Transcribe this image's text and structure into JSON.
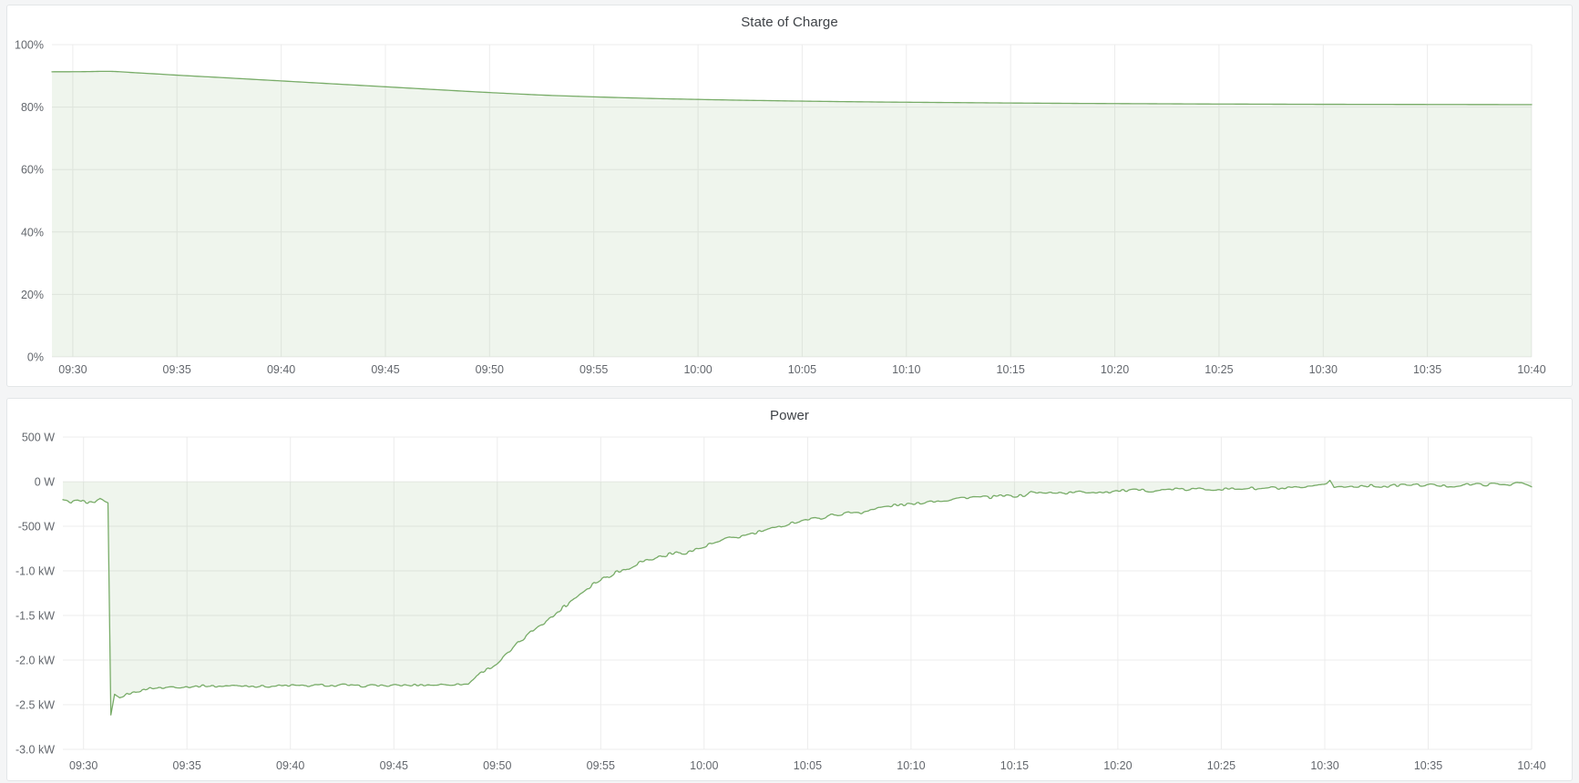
{
  "theme": {
    "page_background": "#f4f5f6",
    "panel_background": "#ffffff",
    "panel_border": "#e3e6e8",
    "title_color": "#3e4247",
    "axis_text_color": "#63676d",
    "grid_color": "#ececec",
    "line_color": "#78ac68",
    "fill_color": "rgba(120,172,104,0.12)"
  },
  "chart_data": [
    {
      "type": "area",
      "title": "State of Charge",
      "unit": "percent",
      "legend": "none",
      "grid": true,
      "smooth": true,
      "noise": false,
      "baseline": 0,
      "ylim": [
        0,
        100
      ],
      "y_ticks": [
        {
          "v": 100,
          "label": "100%"
        },
        {
          "v": 80,
          "label": "80%"
        },
        {
          "v": 60,
          "label": "60%"
        },
        {
          "v": 40,
          "label": "40%"
        },
        {
          "v": 20,
          "label": "20%"
        },
        {
          "v": 0,
          "label": "0%"
        }
      ],
      "x_range_minutes": [
        -1,
        70
      ],
      "x_ticks": [
        {
          "t": 0,
          "label": "09:30"
        },
        {
          "t": 5,
          "label": "09:35"
        },
        {
          "t": 10,
          "label": "09:40"
        },
        {
          "t": 15,
          "label": "09:45"
        },
        {
          "t": 20,
          "label": "09:50"
        },
        {
          "t": 25,
          "label": "09:55"
        },
        {
          "t": 30,
          "label": "10:00"
        },
        {
          "t": 35,
          "label": "10:05"
        },
        {
          "t": 40,
          "label": "10:10"
        },
        {
          "t": 45,
          "label": "10:15"
        },
        {
          "t": 50,
          "label": "10:20"
        },
        {
          "t": 55,
          "label": "10:25"
        },
        {
          "t": 60,
          "label": "10:30"
        },
        {
          "t": 65,
          "label": "10:35"
        },
        {
          "t": 70,
          "label": "10:40"
        }
      ],
      "points": [
        [
          -1,
          91.3
        ],
        [
          0,
          91.32
        ],
        [
          0.7,
          91.36
        ],
        [
          1.4,
          91.44
        ],
        [
          1.9,
          91.42
        ],
        [
          2.4,
          91.25
        ],
        [
          3,
          91.0
        ],
        [
          4,
          90.62
        ],
        [
          5,
          90.22
        ],
        [
          6,
          89.85
        ],
        [
          7,
          89.5
        ],
        [
          8,
          89.12
        ],
        [
          9,
          88.75
        ],
        [
          10,
          88.38
        ],
        [
          11,
          88.0
        ],
        [
          12,
          87.62
        ],
        [
          13,
          87.25
        ],
        [
          14,
          86.88
        ],
        [
          15,
          86.5
        ],
        [
          16,
          86.12
        ],
        [
          17,
          85.75
        ],
        [
          18,
          85.38
        ],
        [
          19,
          85.0
        ],
        [
          20,
          84.65
        ],
        [
          21,
          84.32
        ],
        [
          22,
          84.0
        ],
        [
          23,
          83.72
        ],
        [
          24,
          83.5
        ],
        [
          25,
          83.28
        ],
        [
          26,
          83.08
        ],
        [
          27,
          82.9
        ],
        [
          28,
          82.72
        ],
        [
          29,
          82.58
        ],
        [
          30,
          82.45
        ],
        [
          31,
          82.32
        ],
        [
          32,
          82.2
        ],
        [
          33,
          82.1
        ],
        [
          34,
          82.0
        ],
        [
          35,
          81.9
        ],
        [
          36,
          81.82
        ],
        [
          37,
          81.74
        ],
        [
          38,
          81.67
        ],
        [
          39,
          81.6
        ],
        [
          40,
          81.55
        ],
        [
          41,
          81.5
        ],
        [
          42,
          81.45
        ],
        [
          43,
          81.4
        ],
        [
          44,
          81.35
        ],
        [
          45,
          81.3
        ],
        [
          46,
          81.26
        ],
        [
          47,
          81.22
        ],
        [
          48,
          81.18
        ],
        [
          49,
          81.15
        ],
        [
          50,
          81.12
        ],
        [
          51,
          81.09
        ],
        [
          52,
          81.06
        ],
        [
          53,
          81.03
        ],
        [
          54,
          81.0
        ],
        [
          55,
          80.98
        ],
        [
          56,
          80.96
        ],
        [
          57,
          80.94
        ],
        [
          58,
          80.92
        ],
        [
          59,
          80.9
        ],
        [
          60,
          80.89
        ],
        [
          61,
          80.88
        ],
        [
          62,
          80.87
        ],
        [
          63,
          80.86
        ],
        [
          64,
          80.85
        ],
        [
          65,
          80.84
        ],
        [
          66,
          80.83
        ],
        [
          67,
          80.82
        ],
        [
          68,
          80.81
        ],
        [
          69,
          80.8
        ],
        [
          70,
          80.79
        ]
      ]
    },
    {
      "type": "area",
      "title": "Power",
      "unit": "watt",
      "legend": "none",
      "grid": true,
      "smooth": false,
      "noise": true,
      "sample_step": 0.08,
      "baseline": 0,
      "ylim": [
        -3000,
        500
      ],
      "y_ticks": [
        {
          "v": 500,
          "label": "500 W"
        },
        {
          "v": 0,
          "label": "0 W"
        },
        {
          "v": -500,
          "label": "-500 W"
        },
        {
          "v": -1000,
          "label": "-1.0 kW"
        },
        {
          "v": -1500,
          "label": "-1.5 kW"
        },
        {
          "v": -2000,
          "label": "-2.0 kW"
        },
        {
          "v": -2500,
          "label": "-2.5 kW"
        },
        {
          "v": -3000,
          "label": "-3.0 kW"
        }
      ],
      "x_range_minutes": [
        -1,
        70
      ],
      "x_ticks": [
        {
          "t": 0,
          "label": "09:30"
        },
        {
          "t": 5,
          "label": "09:35"
        },
        {
          "t": 10,
          "label": "09:40"
        },
        {
          "t": 15,
          "label": "09:45"
        },
        {
          "t": 20,
          "label": "09:50"
        },
        {
          "t": 25,
          "label": "09:55"
        },
        {
          "t": 30,
          "label": "10:00"
        },
        {
          "t": 35,
          "label": "10:05"
        },
        {
          "t": 40,
          "label": "10:10"
        },
        {
          "t": 45,
          "label": "10:15"
        },
        {
          "t": 50,
          "label": "10:20"
        },
        {
          "t": 55,
          "label": "10:25"
        },
        {
          "t": 60,
          "label": "10:30"
        },
        {
          "t": 65,
          "label": "10:35"
        },
        {
          "t": 70,
          "label": "10:40"
        }
      ],
      "points": [
        [
          -1,
          -205,
          30
        ],
        [
          -0.6,
          -240,
          30
        ],
        [
          -0.2,
          -210,
          30
        ],
        [
          0.2,
          -225,
          32
        ],
        [
          0.55,
          -245,
          25
        ],
        [
          0.8,
          -195,
          22
        ],
        [
          1.0,
          -225,
          15
        ],
        [
          1.18,
          -238,
          4
        ],
        [
          1.32,
          -2615,
          0
        ],
        [
          1.5,
          -2390,
          12
        ],
        [
          1.75,
          -2430,
          15
        ],
        [
          2.1,
          -2380,
          18
        ],
        [
          2.6,
          -2345,
          18
        ],
        [
          3.2,
          -2320,
          20
        ],
        [
          4,
          -2305,
          20
        ],
        [
          5,
          -2295,
          20
        ],
        [
          6.5,
          -2290,
          20
        ],
        [
          8,
          -2288,
          20
        ],
        [
          10,
          -2285,
          22
        ],
        [
          12,
          -2283,
          20
        ],
        [
          14,
          -2287,
          20
        ],
        [
          16,
          -2280,
          20
        ],
        [
          17.5,
          -2278,
          18
        ],
        [
          18.6,
          -2268,
          15
        ],
        [
          19,
          -2170,
          22
        ],
        [
          19.6,
          -2090,
          25
        ],
        [
          20,
          -2030,
          28
        ],
        [
          20.6,
          -1905,
          30
        ],
        [
          21,
          -1800,
          32
        ],
        [
          21.6,
          -1695,
          35
        ],
        [
          22,
          -1620,
          38
        ],
        [
          22.6,
          -1520,
          38
        ],
        [
          23,
          -1430,
          40
        ],
        [
          23.6,
          -1330,
          42
        ],
        [
          24,
          -1250,
          44
        ],
        [
          24.6,
          -1160,
          45
        ],
        [
          25,
          -1100,
          48
        ],
        [
          25.6,
          -1030,
          46
        ],
        [
          26,
          -990,
          44
        ],
        [
          26.6,
          -940,
          42
        ],
        [
          27,
          -900,
          40
        ],
        [
          27.6,
          -865,
          40
        ],
        [
          28,
          -840,
          38
        ],
        [
          28.6,
          -810,
          36
        ],
        [
          29,
          -790,
          36
        ],
        [
          29.6,
          -760,
          35
        ],
        [
          30,
          -735,
          34
        ],
        [
          30.6,
          -690,
          34
        ],
        [
          31,
          -660,
          34
        ],
        [
          31.6,
          -620,
          33
        ],
        [
          32,
          -590,
          32
        ],
        [
          32.6,
          -565,
          31
        ],
        [
          33,
          -545,
          30
        ],
        [
          33.6,
          -510,
          30
        ],
        [
          34,
          -480,
          30
        ],
        [
          34.6,
          -450,
          30
        ],
        [
          35,
          -430,
          30
        ],
        [
          35.6,
          -408,
          30
        ],
        [
          36,
          -390,
          30
        ],
        [
          36.6,
          -372,
          29
        ],
        [
          37,
          -360,
          29
        ],
        [
          37.6,
          -332,
          29
        ],
        [
          38,
          -310,
          29
        ],
        [
          38.6,
          -292,
          28
        ],
        [
          39,
          -280,
          28
        ],
        [
          39.6,
          -262,
          28
        ],
        [
          40,
          -250,
          28
        ],
        [
          40.6,
          -232,
          28
        ],
        [
          41,
          -220,
          27
        ],
        [
          41.6,
          -205,
          27
        ],
        [
          42,
          -195,
          27
        ],
        [
          42.6,
          -186,
          27
        ],
        [
          43,
          -180,
          26
        ],
        [
          43.6,
          -174,
          26
        ],
        [
          44,
          -170,
          26
        ],
        [
          44.6,
          -164,
          26
        ],
        [
          45,
          -160,
          26
        ],
        [
          45.5,
          -150,
          25
        ],
        [
          45.8,
          -122,
          24
        ],
        [
          46.4,
          -126,
          24
        ],
        [
          47,
          -124,
          24
        ],
        [
          47.8,
          -120,
          24
        ],
        [
          48.6,
          -116,
          24
        ],
        [
          49.4,
          -112,
          24
        ],
        [
          50,
          -108,
          25
        ],
        [
          50.8,
          -98,
          26
        ],
        [
          51.6,
          -92,
          26
        ],
        [
          52.4,
          -88,
          26
        ],
        [
          53.2,
          -86,
          26
        ],
        [
          54,
          -84,
          26
        ],
        [
          54.8,
          -82,
          26
        ],
        [
          55.6,
          -79,
          26
        ],
        [
          56.4,
          -77,
          26
        ],
        [
          57.2,
          -74,
          26
        ],
        [
          58,
          -71,
          26
        ],
        [
          58.8,
          -70,
          26
        ],
        [
          59.6,
          -55,
          26
        ],
        [
          60.1,
          -20,
          10
        ],
        [
          60.25,
          15,
          0
        ],
        [
          60.45,
          -65,
          18
        ],
        [
          61,
          -58,
          26
        ],
        [
          61.8,
          -54,
          26
        ],
        [
          62.6,
          -50,
          26
        ],
        [
          63.4,
          -46,
          26
        ],
        [
          64.2,
          -42,
          25
        ],
        [
          65,
          -32,
          24
        ],
        [
          65.8,
          -44,
          24
        ],
        [
          66.6,
          -38,
          24
        ],
        [
          67.4,
          -33,
          24
        ],
        [
          68.2,
          -29,
          24
        ],
        [
          69,
          -26,
          22
        ],
        [
          69.5,
          -14,
          16
        ],
        [
          69.8,
          -35,
          8
        ],
        [
          70,
          -58,
          0
        ]
      ]
    }
  ]
}
